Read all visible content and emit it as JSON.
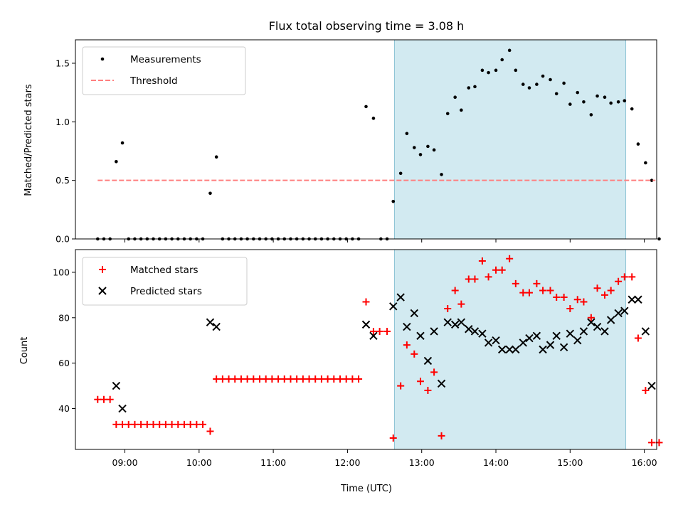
{
  "chart_data": [
    {
      "type": "scatter",
      "title": "Flux total observing time = 3.08 h",
      "xlabel": "",
      "ylabel": "Matched/Predicted stars",
      "xlim": [
        "08:20",
        "16:10"
      ],
      "ylim": [
        0,
        1.7
      ],
      "yticks": [
        0.0,
        0.5,
        1.0,
        1.5
      ],
      "ytick_labels": [
        "0.0",
        "0.5",
        "1.0",
        "1.5"
      ],
      "highlight_span": [
        "12:38",
        "15:45"
      ],
      "highlight_color": "#add8e6",
      "legend": {
        "placement": "top-left"
      },
      "series": [
        {
          "name": "Measurements",
          "marker": "dot",
          "color": "#000000",
          "points": [
            [
              "08:38",
              0
            ],
            [
              "08:43",
              0
            ],
            [
              "08:48",
              0
            ],
            [
              "08:53",
              0.66
            ],
            [
              "08:58",
              0.82
            ],
            [
              "09:03",
              0
            ],
            [
              "09:08",
              0
            ],
            [
              "09:13",
              0
            ],
            [
              "09:18",
              0
            ],
            [
              "09:23",
              0
            ],
            [
              "09:28",
              0
            ],
            [
              "09:33",
              0
            ],
            [
              "09:38",
              0
            ],
            [
              "09:43",
              0
            ],
            [
              "09:48",
              0
            ],
            [
              "09:53",
              0
            ],
            [
              "09:58",
              0
            ],
            [
              "10:03",
              0
            ],
            [
              "10:09",
              0.39
            ],
            [
              "10:14",
              0.7
            ],
            [
              "10:19",
              0
            ],
            [
              "10:24",
              0
            ],
            [
              "10:29",
              0
            ],
            [
              "10:34",
              0
            ],
            [
              "10:39",
              0
            ],
            [
              "10:44",
              0
            ],
            [
              "10:49",
              0
            ],
            [
              "10:54",
              0
            ],
            [
              "10:59",
              0
            ],
            [
              "11:04",
              0
            ],
            [
              "11:09",
              0
            ],
            [
              "11:14",
              0
            ],
            [
              "11:19",
              0
            ],
            [
              "11:24",
              0
            ],
            [
              "11:29",
              0
            ],
            [
              "11:34",
              0
            ],
            [
              "11:39",
              0
            ],
            [
              "11:44",
              0
            ],
            [
              "11:49",
              0
            ],
            [
              "11:54",
              0
            ],
            [
              "11:59",
              0
            ],
            [
              "12:04",
              0
            ],
            [
              "12:09",
              0
            ],
            [
              "12:15",
              1.13
            ],
            [
              "12:21",
              1.03
            ],
            [
              "12:27",
              0
            ],
            [
              "12:32",
              0
            ],
            [
              "12:37",
              0.32
            ],
            [
              "12:43",
              0.56
            ],
            [
              "12:48",
              0.9
            ],
            [
              "12:54",
              0.78
            ],
            [
              "12:59",
              0.72
            ],
            [
              "13:05",
              0.79
            ],
            [
              "13:10",
              0.76
            ],
            [
              "13:16",
              0.55
            ],
            [
              "13:21",
              1.07
            ],
            [
              "13:27",
              1.21
            ],
            [
              "13:32",
              1.1
            ],
            [
              "13:38",
              1.29
            ],
            [
              "13:43",
              1.3
            ],
            [
              "13:49",
              1.44
            ],
            [
              "13:54",
              1.42
            ],
            [
              "14:00",
              1.44
            ],
            [
              "14:05",
              1.53
            ],
            [
              "14:11",
              1.61
            ],
            [
              "14:16",
              1.44
            ],
            [
              "14:22",
              1.32
            ],
            [
              "14:27",
              1.29
            ],
            [
              "14:33",
              1.32
            ],
            [
              "14:38",
              1.39
            ],
            [
              "14:44",
              1.36
            ],
            [
              "14:49",
              1.24
            ],
            [
              "14:55",
              1.33
            ],
            [
              "15:00",
              1.15
            ],
            [
              "15:06",
              1.25
            ],
            [
              "15:11",
              1.17
            ],
            [
              "15:17",
              1.06
            ],
            [
              "15:22",
              1.22
            ],
            [
              "15:28",
              1.21
            ],
            [
              "15:33",
              1.16
            ],
            [
              "15:39",
              1.17
            ],
            [
              "15:44",
              1.18
            ],
            [
              "15:50",
              1.11
            ],
            [
              "15:55",
              0.81
            ],
            [
              "16:01",
              0.65
            ],
            [
              "16:06",
              0.5
            ],
            [
              "16:12",
              0
            ]
          ]
        },
        {
          "name": "Threshold",
          "marker": "dashed-line",
          "color": "#ff7f7f",
          "y": 0.5,
          "x_range": [
            "08:38",
            "16:09"
          ]
        }
      ]
    },
    {
      "type": "scatter",
      "title": "",
      "xlabel": "Time (UTC)",
      "ylabel": "Count",
      "xlim": [
        "08:20",
        "16:10"
      ],
      "ylim": [
        22,
        110
      ],
      "yticks": [
        40,
        60,
        80,
        100
      ],
      "ytick_labels": [
        "40",
        "60",
        "80",
        "100"
      ],
      "xticks": [
        "09:00",
        "10:00",
        "11:00",
        "12:00",
        "13:00",
        "14:00",
        "15:00",
        "16:00"
      ],
      "highlight_span": [
        "12:38",
        "15:45"
      ],
      "highlight_color": "#add8e6",
      "legend": {
        "placement": "top-left"
      },
      "series": [
        {
          "name": "Matched stars",
          "marker": "plus",
          "color": "#ff0000",
          "points": [
            [
              "08:38",
              44
            ],
            [
              "08:43",
              44
            ],
            [
              "08:48",
              44
            ],
            [
              "08:53",
              33
            ],
            [
              "08:58",
              33
            ],
            [
              "09:03",
              33
            ],
            [
              "09:08",
              33
            ],
            [
              "09:13",
              33
            ],
            [
              "09:18",
              33
            ],
            [
              "09:23",
              33
            ],
            [
              "09:28",
              33
            ],
            [
              "09:33",
              33
            ],
            [
              "09:38",
              33
            ],
            [
              "09:43",
              33
            ],
            [
              "09:48",
              33
            ],
            [
              "09:53",
              33
            ],
            [
              "09:58",
              33
            ],
            [
              "10:03",
              33
            ],
            [
              "10:09",
              30
            ],
            [
              "10:14",
              53
            ],
            [
              "10:19",
              53
            ],
            [
              "10:24",
              53
            ],
            [
              "10:29",
              53
            ],
            [
              "10:34",
              53
            ],
            [
              "10:39",
              53
            ],
            [
              "10:44",
              53
            ],
            [
              "10:49",
              53
            ],
            [
              "10:54",
              53
            ],
            [
              "10:59",
              53
            ],
            [
              "11:04",
              53
            ],
            [
              "11:09",
              53
            ],
            [
              "11:14",
              53
            ],
            [
              "11:19",
              53
            ],
            [
              "11:24",
              53
            ],
            [
              "11:29",
              53
            ],
            [
              "11:34",
              53
            ],
            [
              "11:39",
              53
            ],
            [
              "11:44",
              53
            ],
            [
              "11:49",
              53
            ],
            [
              "11:54",
              53
            ],
            [
              "11:59",
              53
            ],
            [
              "12:04",
              53
            ],
            [
              "12:09",
              53
            ],
            [
              "12:15",
              87
            ],
            [
              "12:21",
              74
            ],
            [
              "12:26",
              74
            ],
            [
              "12:32",
              74
            ],
            [
              "12:37",
              27
            ],
            [
              "12:43",
              50
            ],
            [
              "12:48",
              68
            ],
            [
              "12:54",
              64
            ],
            [
              "12:59",
              52
            ],
            [
              "13:05",
              48
            ],
            [
              "13:10",
              56
            ],
            [
              "13:16",
              28
            ],
            [
              "13:21",
              84
            ],
            [
              "13:27",
              92
            ],
            [
              "13:32",
              86
            ],
            [
              "13:38",
              97
            ],
            [
              "13:43",
              97
            ],
            [
              "13:49",
              105
            ],
            [
              "13:54",
              98
            ],
            [
              "14:00",
              101
            ],
            [
              "14:05",
              101
            ],
            [
              "14:11",
              106
            ],
            [
              "14:16",
              95
            ],
            [
              "14:22",
              91
            ],
            [
              "14:27",
              91
            ],
            [
              "14:33",
              95
            ],
            [
              "14:38",
              92
            ],
            [
              "14:44",
              92
            ],
            [
              "14:49",
              89
            ],
            [
              "14:55",
              89
            ],
            [
              "15:00",
              84
            ],
            [
              "15:06",
              88
            ],
            [
              "15:11",
              87
            ],
            [
              "15:17",
              80
            ],
            [
              "15:22",
              93
            ],
            [
              "15:28",
              90
            ],
            [
              "15:33",
              92
            ],
            [
              "15:39",
              96
            ],
            [
              "15:44",
              98
            ],
            [
              "15:50",
              98
            ],
            [
              "15:55",
              71
            ],
            [
              "16:01",
              48
            ],
            [
              "16:06",
              25
            ],
            [
              "16:12",
              25
            ]
          ]
        },
        {
          "name": "Predicted stars",
          "marker": "x",
          "color": "#000000",
          "points": [
            [
              "08:53",
              50
            ],
            [
              "08:58",
              40
            ],
            [
              "10:09",
              78
            ],
            [
              "10:14",
              76
            ],
            [
              "12:15",
              77
            ],
            [
              "12:21",
              72
            ],
            [
              "12:37",
              85
            ],
            [
              "12:43",
              89
            ],
            [
              "12:48",
              76
            ],
            [
              "12:54",
              82
            ],
            [
              "12:59",
              72
            ],
            [
              "13:05",
              61
            ],
            [
              "13:10",
              74
            ],
            [
              "13:16",
              51
            ],
            [
              "13:21",
              78
            ],
            [
              "13:27",
              77
            ],
            [
              "13:32",
              78
            ],
            [
              "13:38",
              75
            ],
            [
              "13:43",
              74
            ],
            [
              "13:49",
              73
            ],
            [
              "13:54",
              69
            ],
            [
              "14:00",
              70
            ],
            [
              "14:05",
              66
            ],
            [
              "14:11",
              66
            ],
            [
              "14:16",
              66
            ],
            [
              "14:22",
              69
            ],
            [
              "14:27",
              71
            ],
            [
              "14:33",
              72
            ],
            [
              "14:38",
              66
            ],
            [
              "14:44",
              68
            ],
            [
              "14:49",
              72
            ],
            [
              "14:55",
              67
            ],
            [
              "15:00",
              73
            ],
            [
              "15:06",
              70
            ],
            [
              "15:11",
              74
            ],
            [
              "15:17",
              78
            ],
            [
              "15:22",
              76
            ],
            [
              "15:28",
              74
            ],
            [
              "15:33",
              79
            ],
            [
              "15:39",
              82
            ],
            [
              "15:44",
              83
            ],
            [
              "15:50",
              88
            ],
            [
              "15:55",
              88
            ],
            [
              "16:01",
              74
            ],
            [
              "16:06",
              50
            ]
          ]
        }
      ]
    }
  ]
}
